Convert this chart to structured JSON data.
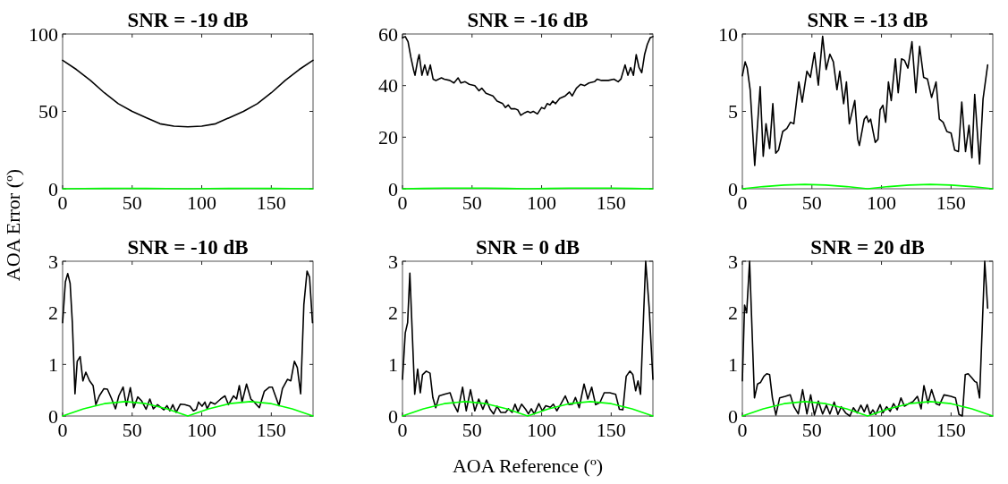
{
  "chart_data": [
    {
      "type": "line",
      "title": "SNR = -19 dB",
      "ylabel": "AOA Error (º)",
      "xlim": [
        0,
        180
      ],
      "xticks": [
        0,
        50,
        100,
        150
      ],
      "ylim": [
        0,
        100
      ],
      "yticks": [
        0,
        50,
        100
      ],
      "series": [
        {
          "color": "#000000",
          "x": [
            0,
            10,
            20,
            30,
            40,
            50,
            60,
            70,
            80,
            90,
            100,
            110,
            120,
            130,
            140,
            150,
            160,
            170,
            180
          ],
          "values": [
            83,
            77,
            70,
            62,
            55,
            50,
            46,
            42,
            40.5,
            40,
            40.5,
            42,
            46,
            50,
            55,
            62,
            70,
            77,
            83
          ]
        },
        {
          "color": "#00ff00",
          "x": [
            0,
            15,
            30,
            45,
            60,
            75,
            90,
            105,
            120,
            135,
            150,
            165,
            180
          ],
          "values": [
            0,
            0.14,
            0.24,
            0.28,
            0.24,
            0.14,
            0,
            0.14,
            0.24,
            0.28,
            0.24,
            0.14,
            0
          ]
        }
      ]
    },
    {
      "type": "line",
      "title": "SNR = -16 dB",
      "xlim": [
        0,
        180
      ],
      "xticks": [
        0,
        50,
        100,
        150
      ],
      "ylim": [
        0,
        60
      ],
      "yticks": [
        0,
        20,
        40,
        60
      ],
      "series": [
        {
          "color": "#000000",
          "x": [
            0,
            2,
            4,
            6,
            8,
            9,
            11,
            12,
            14,
            16,
            18,
            20,
            22,
            24,
            26,
            28,
            30,
            34,
            37,
            40,
            42,
            45,
            48,
            52,
            55,
            57,
            60,
            65,
            68,
            72,
            74,
            76,
            78,
            81,
            83,
            85,
            88,
            90,
            92,
            94,
            97,
            100,
            102,
            104,
            106,
            108,
            110,
            113,
            117,
            120,
            122,
            125,
            128,
            131,
            134,
            138,
            140,
            143,
            148,
            152,
            155,
            157,
            160,
            162,
            164,
            166,
            168,
            170,
            172,
            174,
            176,
            178,
            180
          ],
          "values": [
            58.5,
            59,
            57,
            51,
            46,
            44,
            50,
            52,
            44,
            48,
            44,
            48,
            42.5,
            42,
            42.5,
            43,
            42.5,
            42,
            41,
            43,
            41,
            41.5,
            40.5,
            40,
            38,
            39,
            37,
            36,
            34,
            33,
            31.5,
            32.5,
            31,
            31,
            30.5,
            28.5,
            29.5,
            30,
            29.5,
            30,
            29,
            31.5,
            31,
            33,
            32.5,
            34,
            33,
            35,
            36,
            37.5,
            36,
            39,
            40.5,
            40,
            41,
            41.5,
            42.5,
            42,
            42,
            42.5,
            41.5,
            42.5,
            48,
            44,
            47,
            44,
            52,
            47,
            45,
            52,
            56,
            58.5,
            59
          ]
        },
        {
          "color": "#00ff00",
          "x": [
            0,
            15,
            30,
            45,
            60,
            75,
            90,
            105,
            120,
            135,
            150,
            165,
            180
          ],
          "values": [
            0,
            0.14,
            0.24,
            0.28,
            0.24,
            0.14,
            0,
            0.14,
            0.24,
            0.28,
            0.24,
            0.14,
            0
          ]
        }
      ]
    },
    {
      "type": "line",
      "title": "SNR = -13 dB",
      "xlim": [
        0,
        180
      ],
      "xticks": [
        0,
        50,
        100,
        150
      ],
      "ylim": [
        0,
        10
      ],
      "yticks": [
        0,
        5,
        10
      ],
      "series": [
        {
          "color": "#000000",
          "x": [
            0,
            2,
            3.5,
            5.6,
            8.9,
            12.8,
            15,
            17,
            19.6,
            21.9,
            24,
            26,
            29,
            32,
            34.6,
            37,
            40.6,
            43,
            46.4,
            48.9,
            51.8,
            54.6,
            57.7,
            60.2,
            62.9,
            65.4,
            68,
            70,
            72.8,
            74.8,
            76.9,
            80.8,
            82.9,
            84.1,
            87.6,
            89.3,
            90.7,
            92.2,
            95.5,
            97.5,
            99,
            101,
            103,
            105,
            107,
            110,
            112,
            114.4,
            116.5,
            119,
            121.9,
            124.7,
            127.4,
            130.3,
            133,
            136,
            139.2,
            141.6,
            144.3,
            147,
            150,
            152.6,
            155.3,
            157.7,
            160.4,
            162.9,
            165,
            167,
            170.5,
            173,
            176.3
          ],
          "values": [
            7.3,
            8.2,
            7.8,
            6.4,
            1.5,
            6.6,
            2.1,
            4.2,
            2.6,
            5.5,
            2.3,
            2.5,
            3.7,
            3.9,
            4.3,
            4.2,
            6.9,
            5.6,
            7.6,
            7.2,
            8.8,
            6.7,
            9.85,
            7.7,
            8.7,
            8.2,
            6.4,
            7.6,
            5.5,
            6.9,
            4.2,
            5.7,
            3.2,
            2.8,
            4.5,
            4.7,
            4.3,
            4.5,
            3,
            3.2,
            5.1,
            5.4,
            4.3,
            6.9,
            5.7,
            8.4,
            6.2,
            8.4,
            8.3,
            7.8,
            9.5,
            6.2,
            9.2,
            7.2,
            7.1,
            5.9,
            6.9,
            4.5,
            4.3,
            3.7,
            3.6,
            2.5,
            2.4,
            5.6,
            2.4,
            4.1,
            2,
            6.1,
            1.6,
            5.8,
            8
          ]
        },
        {
          "color": "#00ff00",
          "x": [
            0,
            15,
            30,
            45,
            60,
            75,
            90,
            105,
            120,
            135,
            150,
            165,
            180
          ],
          "values": [
            0,
            0.14,
            0.24,
            0.28,
            0.24,
            0.14,
            0,
            0.14,
            0.24,
            0.28,
            0.24,
            0.14,
            0
          ]
        }
      ]
    },
    {
      "type": "line",
      "title": "SNR = -10 dB",
      "xlim": [
        0,
        180
      ],
      "xticks": [
        0,
        50,
        100,
        150
      ],
      "ylim": [
        0,
        3
      ],
      "yticks": [
        0,
        1,
        2,
        3
      ],
      "series": [
        {
          "color": "#000000",
          "x": [
            0,
            2,
            3.7,
            5.4,
            7,
            8.9,
            10.5,
            12.6,
            14.6,
            16.7,
            19.4,
            21.9,
            23.9,
            26.4,
            29.7,
            32.2,
            35.3,
            38,
            40.4,
            43.5,
            45.8,
            48.7,
            51.1,
            54,
            56.9,
            60,
            62.7,
            65.2,
            68.2,
            71,
            72.8,
            75,
            77.1,
            79.2,
            81.6,
            84.7,
            87.8,
            91.5,
            94,
            96.1,
            97.7,
            100.2,
            102.3,
            103.9,
            106.4,
            109.5,
            113.6,
            116.7,
            119.2,
            122.9,
            125,
            127,
            129,
            132.2,
            135.3,
            137.7,
            141.4,
            145,
            148.7,
            150.7,
            155.5,
            158,
            161.6,
            164,
            166.6,
            168.7,
            171.1,
            173.4,
            175.7,
            177.5,
            179.6
          ],
          "values": [
            1.81,
            2.6,
            2.76,
            2.57,
            1.81,
            0.43,
            1.06,
            1.15,
            0.68,
            0.85,
            0.68,
            0.59,
            0.22,
            0.39,
            0.53,
            0.52,
            0.33,
            0.14,
            0.39,
            0.56,
            0.2,
            0.55,
            0.16,
            0.37,
            0.29,
            0.13,
            0.33,
            0.14,
            0.22,
            0.16,
            0.12,
            0.2,
            0.1,
            0.22,
            0.07,
            0.23,
            0.22,
            0.19,
            0.1,
            0.13,
            0.27,
            0.19,
            0.27,
            0.14,
            0.27,
            0.23,
            0.33,
            0.39,
            0.22,
            0.39,
            0.33,
            0.59,
            0.27,
            0.62,
            0.33,
            0.27,
            0.16,
            0.48,
            0.56,
            0.56,
            0.2,
            0.53,
            0.71,
            0.68,
            1.06,
            0.94,
            0.43,
            2.16,
            2.81,
            2.69,
            1.81
          ]
        },
        {
          "color": "#00ff00",
          "x": [
            0,
            15,
            30,
            45,
            60,
            75,
            90,
            105,
            120,
            135,
            150,
            165,
            180
          ],
          "values": [
            0,
            0.14,
            0.24,
            0.28,
            0.24,
            0.14,
            0,
            0.14,
            0.24,
            0.28,
            0.24,
            0.14,
            0
          ]
        }
      ]
    },
    {
      "type": "line",
      "title": "SNR = 0 dB",
      "xlabel": "AOA Reference (º)",
      "xlim": [
        0,
        180
      ],
      "xticks": [
        0,
        50,
        100,
        150
      ],
      "ylim": [
        0,
        3
      ],
      "yticks": [
        0,
        1,
        2,
        3
      ],
      "series": [
        {
          "color": "#000000",
          "x": [
            0,
            2,
            3.7,
            5.3,
            8.8,
            10.9,
            12.8,
            14.4,
            17.1,
            19.8,
            21.8,
            23.9,
            26.4,
            30,
            34.2,
            37,
            39.7,
            43.2,
            45.8,
            48.9,
            52,
            54.8,
            57.8,
            60.3,
            63,
            65.5,
            68,
            70.6,
            74.1,
            76.1,
            78.8,
            80.9,
            83,
            85.6,
            88.5,
            90.5,
            92.6,
            94.7,
            98,
            100.5,
            103,
            106.3,
            108.4,
            110.9,
            114,
            117,
            119.6,
            122.3,
            124.3,
            127,
            130.5,
            133.2,
            136,
            138.8,
            141.9,
            145,
            149,
            153.2,
            155.9,
            158.4,
            160.8,
            163.5,
            165.6,
            167.6,
            169.3,
            171.1,
            174.8,
            177.3,
            180
          ],
          "values": [
            0.71,
            1.61,
            1.81,
            2.77,
            0.42,
            0.91,
            0.45,
            0.8,
            0.87,
            0.83,
            0.36,
            0.16,
            0.39,
            0.42,
            0.45,
            0.22,
            0.08,
            0.56,
            0.1,
            0.51,
            0.1,
            0.33,
            0.13,
            0.31,
            0.13,
            0.04,
            0.19,
            0.07,
            0.07,
            0.14,
            0.07,
            0.23,
            0.08,
            0.23,
            0.13,
            0.04,
            0.14,
            0.04,
            0.24,
            0.1,
            0.2,
            0.17,
            0.23,
            0.1,
            0.24,
            0.39,
            0.22,
            0.23,
            0.36,
            0.16,
            0.62,
            0.33,
            0.56,
            0.22,
            0.26,
            0.45,
            0.45,
            0.42,
            0.13,
            0.12,
            0.77,
            0.87,
            0.8,
            0.49,
            0.68,
            0.42,
            3,
            2.1,
            0.71
          ]
        },
        {
          "color": "#00ff00",
          "x": [
            0,
            15,
            30,
            45,
            60,
            75,
            90,
            105,
            120,
            135,
            150,
            165,
            180
          ],
          "values": [
            0,
            0.14,
            0.24,
            0.28,
            0.24,
            0.14,
            0,
            0.14,
            0.24,
            0.28,
            0.24,
            0.14,
            0
          ]
        }
      ]
    },
    {
      "type": "line",
      "title": "SNR = 20 dB",
      "xlim": [
        0,
        180
      ],
      "xticks": [
        0,
        50,
        100,
        150
      ],
      "ylim": [
        0,
        3
      ],
      "yticks": [
        0,
        1,
        2,
        3
      ],
      "series": [
        {
          "color": "#000000",
          "x": [
            0,
            1.6,
            3.1,
            5.2,
            8.7,
            10.9,
            13,
            15.5,
            17.5,
            19.6,
            21.6,
            24.1,
            26.8,
            30.9,
            34.4,
            37.1,
            40.2,
            43.3,
            46.4,
            49.1,
            51.8,
            54.6,
            57.7,
            60.4,
            62.9,
            66,
            68.7,
            71.1,
            74.2,
            77.3,
            79.8,
            82.5,
            85.2,
            87.6,
            89.7,
            91.8,
            93.8,
            95.9,
            99,
            101,
            103.7,
            106.2,
            108.7,
            111.3,
            114,
            116.5,
            119.6,
            122.7,
            125.8,
            128.5,
            130.5,
            133.4,
            136,
            139.2,
            141.6,
            144.9,
            149.9,
            153.2,
            155.7,
            158.1,
            160.2,
            162.3,
            164.9,
            167,
            168.5,
            170.5,
            174.2,
            176.3
          ],
          "values": [
            0.68,
            2.15,
            2,
            3,
            0.35,
            0.62,
            0.65,
            0.77,
            0.82,
            0.8,
            0.35,
            0.02,
            0.35,
            0.38,
            0.41,
            0.18,
            0.04,
            0.51,
            0.04,
            0.41,
            0.02,
            0.29,
            0.04,
            0.21,
            0.04,
            0.27,
            0.03,
            0.18,
            0.06,
            0,
            0.16,
            0.06,
            0.21,
            0.08,
            0.22,
            0.03,
            0.12,
            0.03,
            0.22,
            0.06,
            0.18,
            0.09,
            0.24,
            0.12,
            0.35,
            0.19,
            0.24,
            0.28,
            0.38,
            0.14,
            0.59,
            0.25,
            0.51,
            0.24,
            0.21,
            0.41,
            0.38,
            0.35,
            0.03,
            0,
            0.8,
            0.82,
            0.74,
            0.67,
            0.65,
            0.35,
            3,
            2.09
          ]
        },
        {
          "color": "#00ff00",
          "x": [
            0,
            15,
            30,
            45,
            60,
            75,
            90,
            105,
            120,
            135,
            150,
            165,
            180
          ],
          "values": [
            0,
            0.14,
            0.24,
            0.28,
            0.24,
            0.14,
            0,
            0.14,
            0.24,
            0.28,
            0.24,
            0.14,
            0
          ]
        }
      ]
    }
  ]
}
